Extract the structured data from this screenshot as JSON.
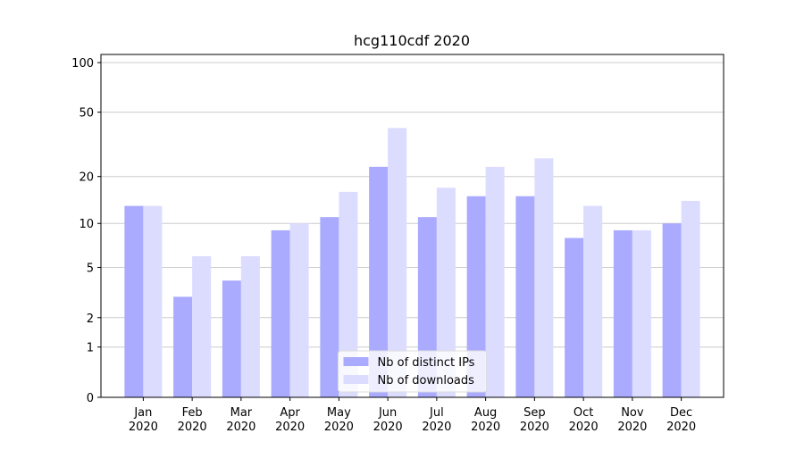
{
  "chart_data": {
    "type": "bar",
    "title": "hcg110cdf 2020",
    "categories": [
      [
        "Jan",
        "2020"
      ],
      [
        "Feb",
        "2020"
      ],
      [
        "Mar",
        "2020"
      ],
      [
        "Apr",
        "2020"
      ],
      [
        "May",
        "2020"
      ],
      [
        "Jun",
        "2020"
      ],
      [
        "Jul",
        "2020"
      ],
      [
        "Aug",
        "2020"
      ],
      [
        "Sep",
        "2020"
      ],
      [
        "Oct",
        "2020"
      ],
      [
        "Nov",
        "2020"
      ],
      [
        "Dec",
        "2020"
      ]
    ],
    "series": [
      {
        "name": "Nb of distinct IPs",
        "color": "#aaaaff",
        "values": [
          13,
          3,
          4,
          9,
          11,
          23,
          11,
          15,
          15,
          8,
          9,
          10
        ]
      },
      {
        "name": "Nb of downloads",
        "color": "#dcdcff",
        "values": [
          13,
          6,
          6,
          10,
          16,
          40,
          17,
          23,
          26,
          13,
          9,
          14
        ]
      }
    ],
    "yscale": "log1p",
    "ylim": [
      0,
      112
    ],
    "yticks": [
      0,
      1,
      2,
      5,
      10,
      20,
      50,
      100
    ],
    "grid": true,
    "legend": "lower center"
  }
}
